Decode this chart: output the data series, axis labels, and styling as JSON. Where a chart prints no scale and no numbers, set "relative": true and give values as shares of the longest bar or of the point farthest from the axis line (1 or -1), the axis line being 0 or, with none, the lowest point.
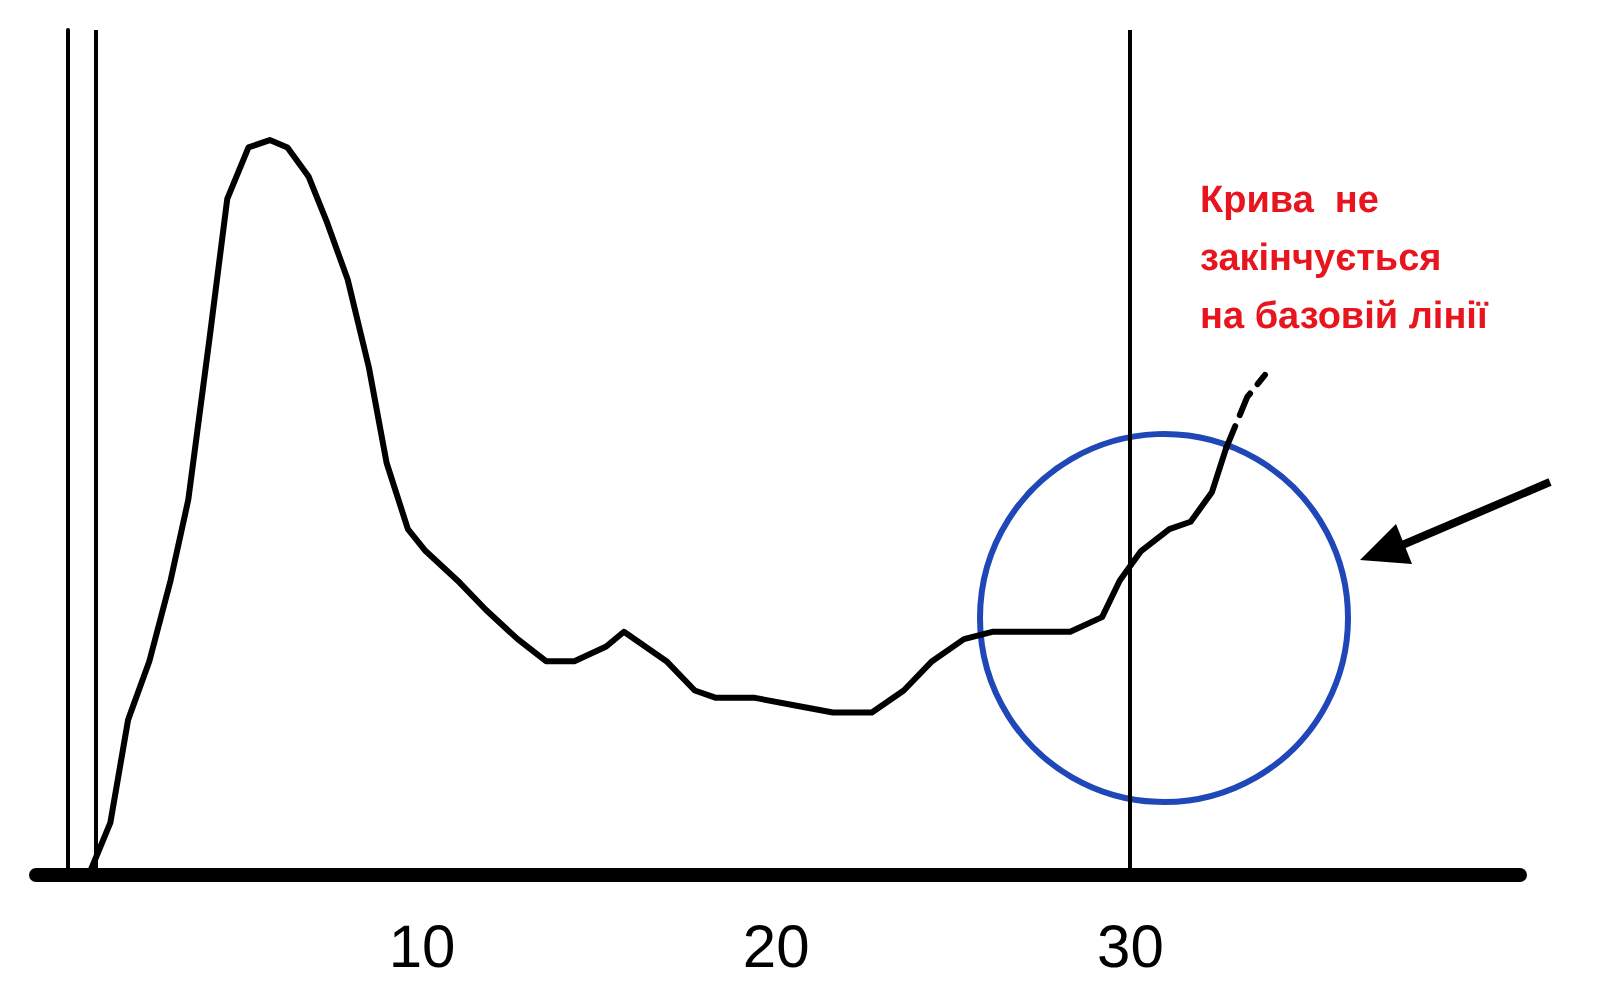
{
  "chart_data": {
    "type": "line",
    "relative": true,
    "xlim": [
      -0.9,
      41
    ],
    "xticks": [
      10,
      20,
      30
    ],
    "grid": false,
    "marker": "none",
    "series": [
      {
        "color": "#000000",
        "line_style": "solid",
        "x": [
          0.6,
          1.2,
          1.7,
          2.3,
          2.9,
          3.4,
          4.0,
          4.5,
          5.1,
          5.7,
          6.2,
          6.8,
          7.3,
          7.9,
          8.5,
          9.0,
          9.6,
          10.1,
          11.0,
          11.8,
          12.7,
          13.5,
          14.3,
          15.2,
          15.7,
          16.3,
          16.9,
          17.7,
          18.3,
          19.4,
          20.5,
          21.6,
          22.7,
          23.6,
          24.4,
          25.3,
          26.1,
          27.2,
          28.3,
          29.2,
          29.7,
          30.3,
          31.1,
          31.7,
          32.3,
          32.7
        ],
        "values": [
          0,
          0.07,
          0.21,
          0.29,
          0.4,
          0.51,
          0.73,
          0.92,
          0.99,
          1,
          0.99,
          0.95,
          0.89,
          0.81,
          0.69,
          0.56,
          0.47,
          0.44,
          0.4,
          0.36,
          0.32,
          0.29,
          0.29,
          0.31,
          0.33,
          0.31,
          0.29,
          0.25,
          0.24,
          0.24,
          0.23,
          0.22,
          0.22,
          0.25,
          0.29,
          0.32,
          0.33,
          0.33,
          0.33,
          0.35,
          0.4,
          0.44,
          0.47,
          0.48,
          0.52,
          0.58
        ]
      },
      {
        "color": "#000000",
        "line_style": "dashed",
        "x": [
          32.7,
          33.3,
          33.8
        ],
        "values": [
          0.58,
          0.65,
          0.68
        ]
      }
    ],
    "ref_lines": [
      {
        "axis": "x",
        "value": 0.8,
        "color": "#000000"
      },
      {
        "axis": "x",
        "value": 30,
        "color": "#000000"
      }
    ],
    "annotations": [
      "Крива  не\nзакінчується\nна базовій лінії"
    ]
  }
}
